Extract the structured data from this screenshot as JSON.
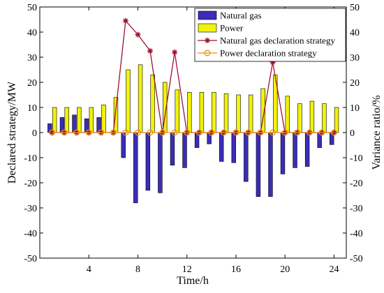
{
  "chart_data": {
    "type": "bar",
    "title": "",
    "xlabel": "Time/h",
    "ylabel": "Declared strategy/MW",
    "y2label": "Variance ratio/%",
    "x": [
      1,
      2,
      3,
      4,
      5,
      6,
      7,
      8,
      9,
      10,
      11,
      12,
      13,
      14,
      15,
      16,
      17,
      18,
      19,
      20,
      21,
      22,
      23,
      24
    ],
    "xlim": [
      0,
      25
    ],
    "xticks": [
      4,
      8,
      12,
      16,
      20,
      24
    ],
    "ylim": [
      -50,
      50
    ],
    "y2lim": [
      -50,
      50
    ],
    "yticks": [
      -50,
      -40,
      -30,
      -20,
      -10,
      0,
      10,
      20,
      30,
      40,
      50
    ],
    "y2ticks": [
      -50,
      -40,
      -30,
      -20,
      -10,
      0,
      10,
      20,
      30,
      40,
      50
    ],
    "grid": false,
    "legend_position": "top-right",
    "series": [
      {
        "name": "Natural gas",
        "kind": "bar",
        "axis": "left",
        "color": "#3b2db8",
        "values": [
          3.5,
          6,
          7,
          5.5,
          6,
          0,
          -10,
          -28,
          -23,
          -24,
          -13,
          -14,
          -6,
          -4.5,
          -11.5,
          -12,
          -19.5,
          -25.5,
          -25.5,
          -16.5,
          -14,
          -13.5,
          -6,
          -4.8
        ]
      },
      {
        "name": "Power",
        "kind": "bar",
        "axis": "left",
        "color": "#f2f20a",
        "values": [
          10,
          10,
          10,
          10,
          11,
          14,
          25,
          27,
          23,
          20,
          17,
          16,
          16,
          16,
          15.5,
          15,
          15,
          17.5,
          23,
          14.5,
          11.5,
          12.5,
          11.5,
          10
        ]
      },
      {
        "name": "Natural gas declaration strategy",
        "kind": "line",
        "axis": "right",
        "color": "#a01030",
        "marker": "star",
        "values": [
          0,
          0,
          0,
          0,
          0,
          0,
          44.5,
          39,
          32.5,
          0,
          32,
          0,
          0,
          0,
          0,
          0,
          0,
          0,
          28,
          0,
          0,
          0,
          0,
          0
        ]
      },
      {
        "name": "Power declaration strategy",
        "kind": "line",
        "axis": "right",
        "color": "#e8901a",
        "marker": "circle",
        "values": [
          0,
          0,
          0,
          0,
          0,
          0,
          0,
          0,
          0,
          0,
          0,
          0,
          0,
          0,
          0,
          0,
          0,
          0,
          0,
          0,
          0,
          0,
          0,
          0
        ]
      }
    ]
  }
}
